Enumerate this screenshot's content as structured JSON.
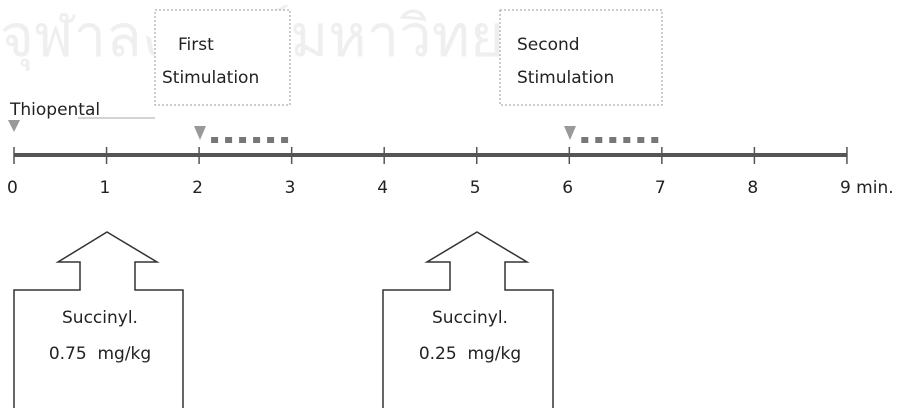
{
  "watermark": "จุฬาลงกรณ์มหาวิทยาลัย",
  "thiopental": "Thiopental",
  "first_stimulation": [
    "First",
    "Stimulation"
  ],
  "second_stimulation": [
    "Second",
    "Stimulation"
  ],
  "timeline": {
    "ticks": [
      0,
      1,
      2,
      3,
      4,
      5,
      6,
      7,
      8,
      {
        "value": 9,
        "label": "9 min."
      }
    ]
  },
  "doses": [
    {
      "drug": "Succinyl.",
      "dose": "0.75  mg/kg"
    },
    {
      "drug": "Succinyl.",
      "dose": "0.25  mg/kg"
    }
  ]
}
